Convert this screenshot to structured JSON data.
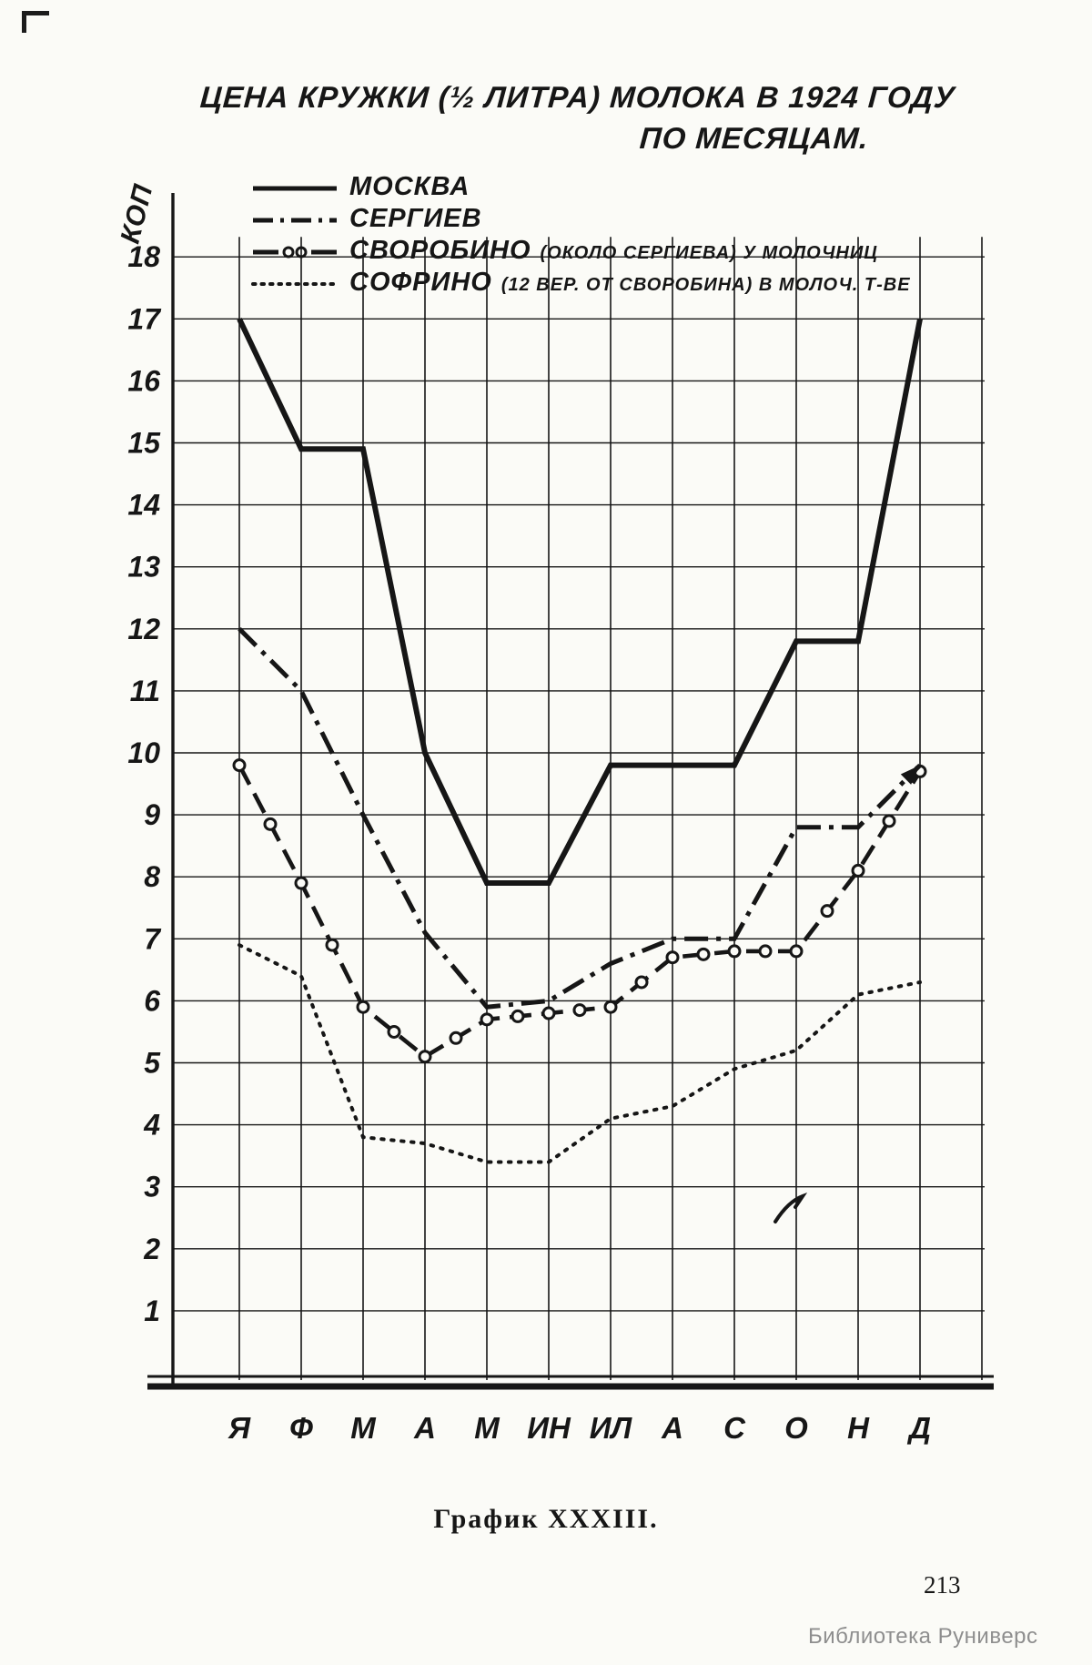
{
  "ink": "#161616",
  "paper": "#fbfbf7",
  "title": {
    "line1": "ЦЕНА КРУЖКИ (½ ЛИТРА) МОЛОКА В 1924 ГОДУ",
    "line2": "ПО МЕСЯЦАМ."
  },
  "legend": {
    "items": [
      {
        "name": "МОСКВА",
        "note": ""
      },
      {
        "name": "СЕРГИЕВ",
        "note": ""
      },
      {
        "name": "СВОРОБИНО",
        "note": "(ОКОЛО СЕРГИЕВА) У МОЛОЧНИЦ"
      },
      {
        "name": "СОФРИНО",
        "note": "(12 ВЕР. ОТ СВОРОБИНА) В МОЛОЧ. Т-ВЕ"
      }
    ]
  },
  "axis": {
    "unit": "КОП",
    "y_ticks": [
      1,
      2,
      3,
      4,
      5,
      6,
      7,
      8,
      9,
      10,
      11,
      12,
      13,
      14,
      15,
      16,
      17,
      18
    ]
  },
  "chart_data": {
    "type": "line",
    "title": "ЦЕНА КРУЖКИ (1/2 ЛИТРА) МОЛОКА В 1924 ГОДУ ПО МЕСЯЦАМ",
    "xlabel": "",
    "ylabel": "КОП",
    "ylim": [
      0,
      18
    ],
    "grid": true,
    "legend_position": "top-left",
    "categories": [
      "Я",
      "Ф",
      "М",
      "А",
      "М",
      "ИН",
      "ИЛ",
      "А",
      "С",
      "О",
      "Н",
      "Д"
    ],
    "series": [
      {
        "name": "МОСКВА",
        "style": "solid",
        "values": [
          17,
          14.9,
          14.9,
          10,
          7.9,
          7.9,
          9.8,
          9.8,
          9.8,
          11.8,
          11.8,
          17
        ]
      },
      {
        "name": "СЕРГИЕВ",
        "style": "dashdot",
        "arrow_end": true,
        "values": [
          12,
          11,
          9,
          7.1,
          5.9,
          6,
          6.6,
          7,
          7,
          8.8,
          8.8,
          9.8
        ]
      },
      {
        "name": "СВОРОБИНО",
        "style": "dashcircle",
        "values": [
          9.8,
          7.9,
          5.9,
          5.1,
          5.7,
          5.8,
          5.9,
          6.7,
          6.8,
          6.8,
          8.1,
          9.7
        ]
      },
      {
        "name": "СОФРИНО",
        "style": "dotted",
        "values": [
          6.9,
          6.4,
          3.8,
          3.7,
          3.4,
          3.4,
          4.1,
          4.3,
          4.9,
          5.2,
          6.1,
          6.3
        ]
      }
    ]
  },
  "caption": "График XXXIII.",
  "page_number": "213",
  "watermark": "Библиотека Руниверс"
}
